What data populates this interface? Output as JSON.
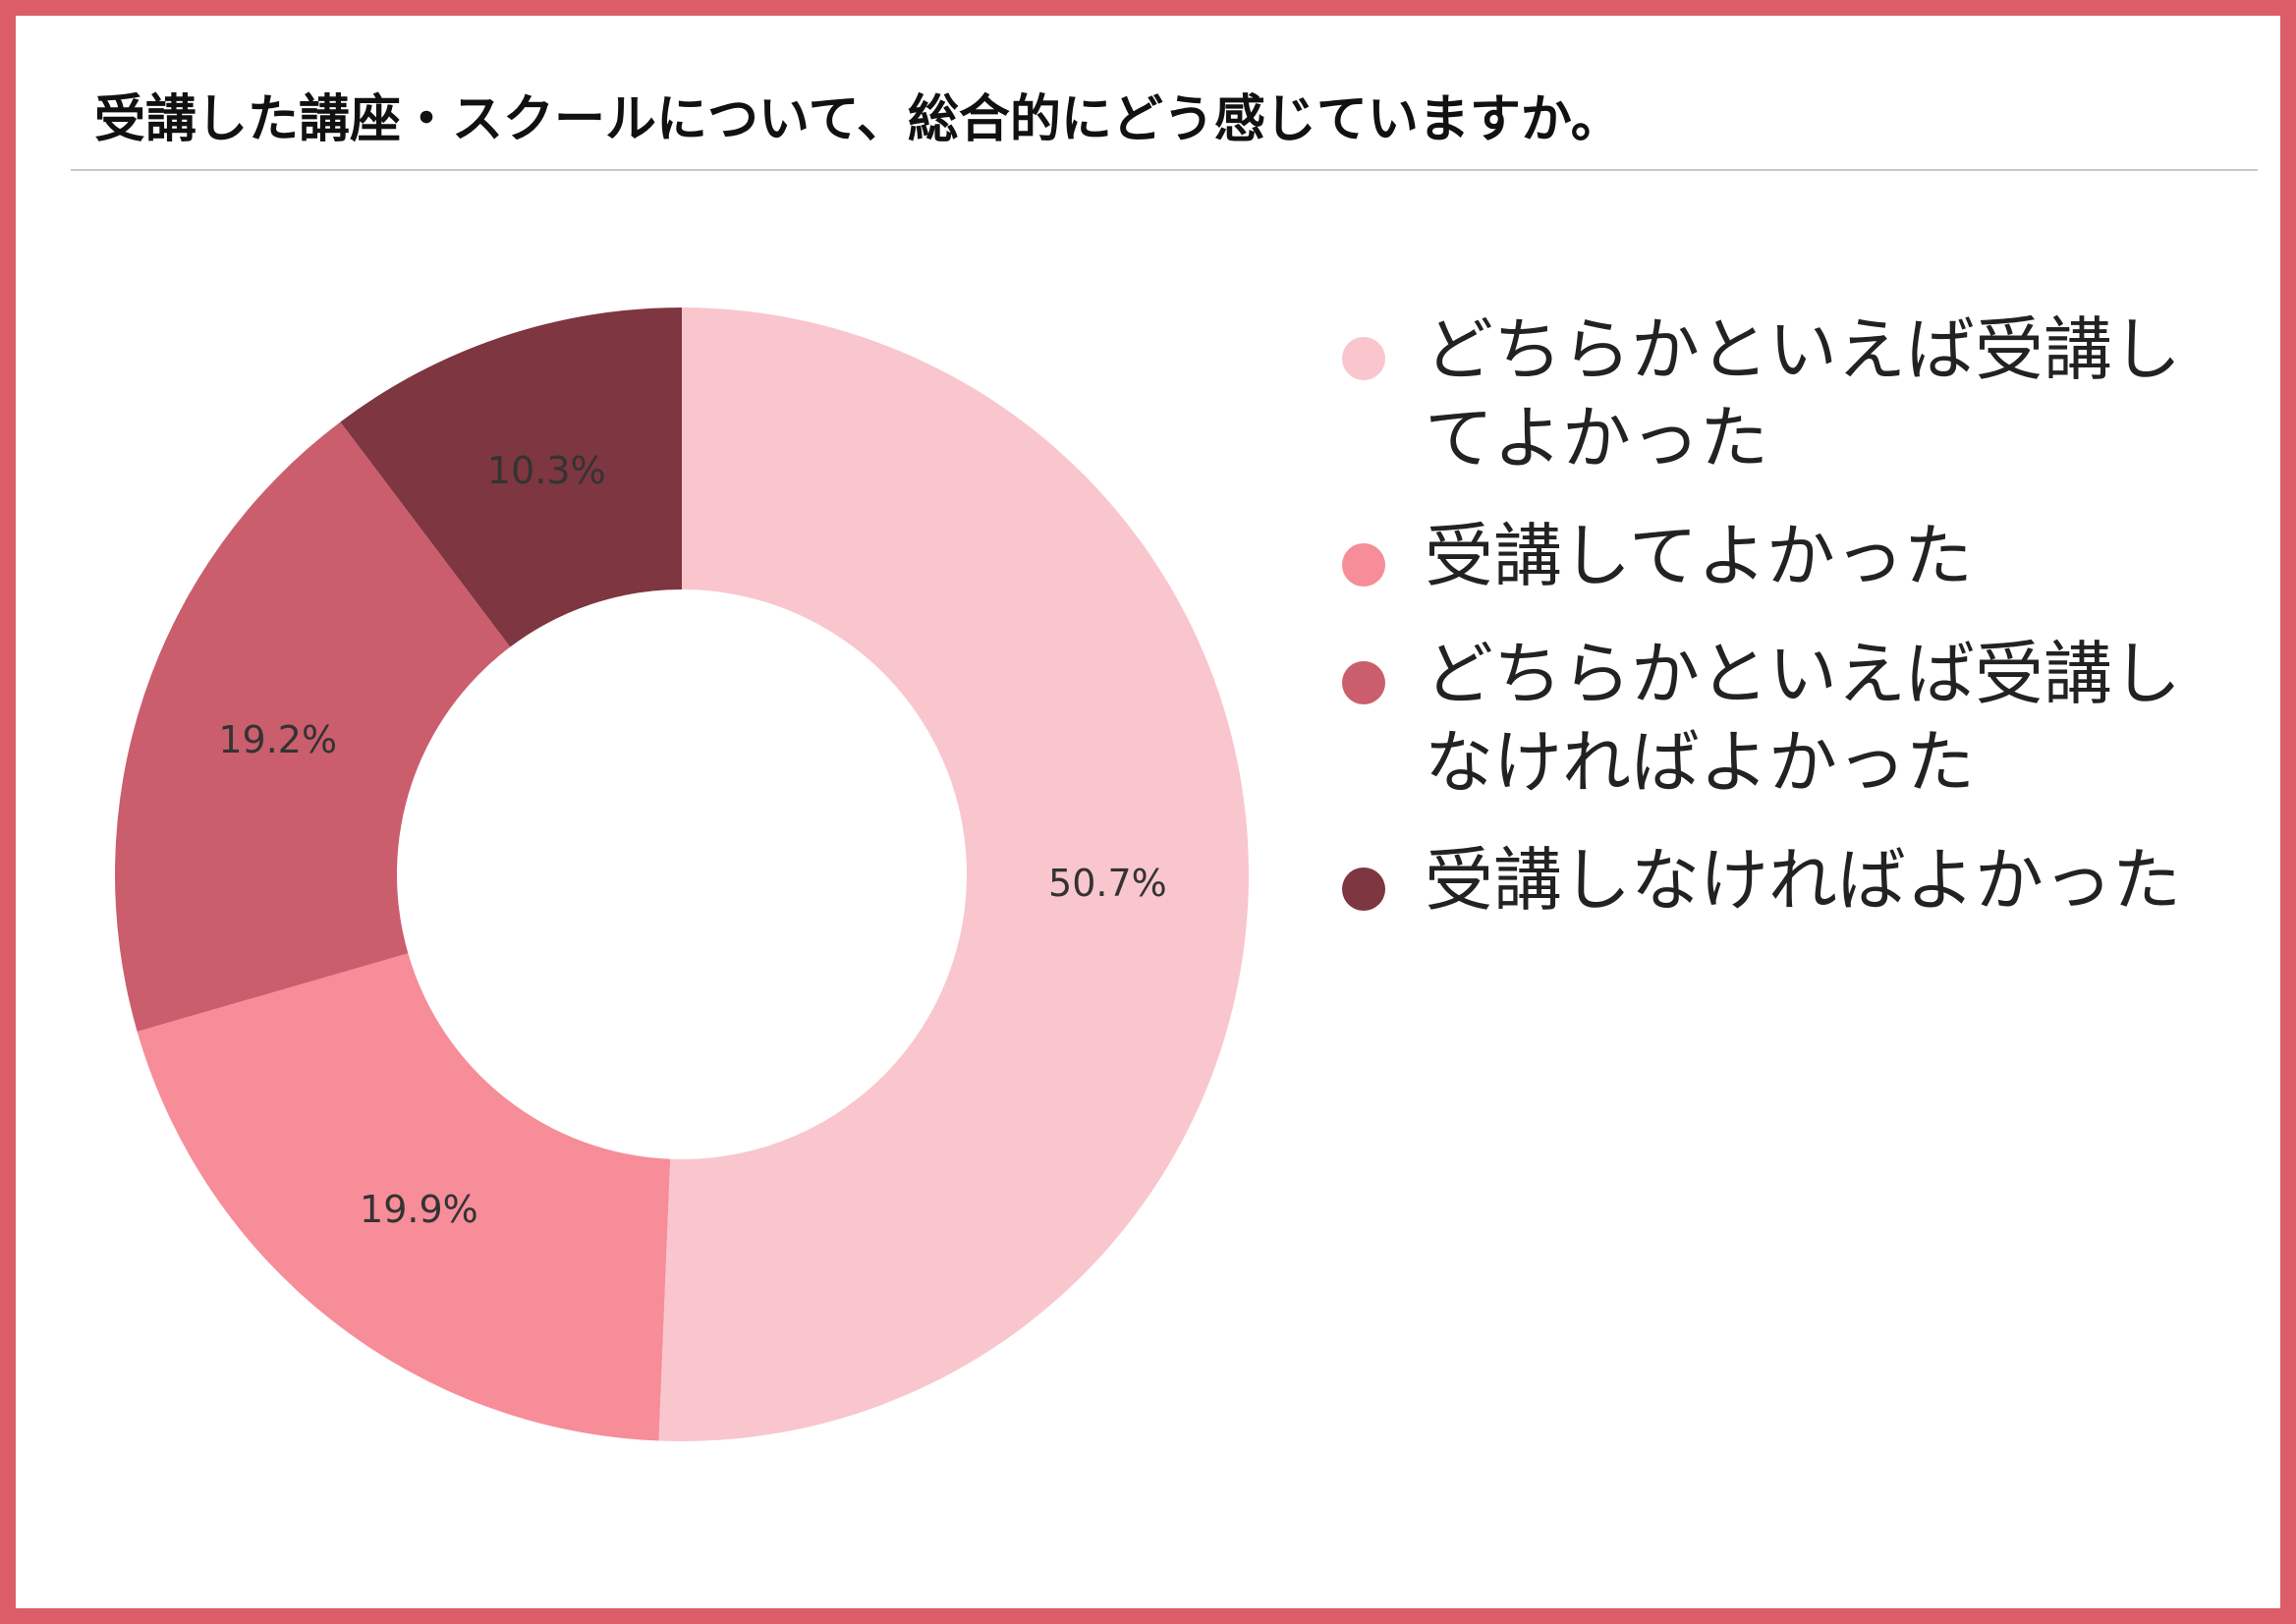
{
  "title": "受講した講座・スクールについて、総合的にどう感じていますか。",
  "colors": {
    "frame": "#dc5d67",
    "title_rule": "#c8c8c8"
  },
  "chart_data": {
    "type": "pie",
    "donut": true,
    "start_angle_deg": 0,
    "direction": "clockwise",
    "legend_position": "right",
    "title": "受講した講座・スクールについて、総合的にどう感じていますか。",
    "unit": "%",
    "series": [
      {
        "values": [
          50.7,
          19.9,
          19.2,
          10.3
        ]
      }
    ],
    "categories": [
      "どちらかといえば受講してよかった",
      "受講してよかった",
      "どちらかといえば受講しなければよかった",
      "受講しなければよかった"
    ],
    "slices": [
      {
        "label": "どちらかといえば受講してよかった",
        "value": 50.7,
        "display": "50.7%",
        "color": "#f9c6cd"
      },
      {
        "label": "受講してよかった",
        "value": 19.9,
        "display": "19.9%",
        "color": "#f68d99"
      },
      {
        "label": "どちらかといえば受講しなければよかった",
        "value": 19.2,
        "display": "19.2%",
        "color": "#cb5e6d"
      },
      {
        "label": "受講しなければよかった",
        "value": 10.3,
        "display": "10.3%",
        "color": "#7e3640"
      }
    ]
  }
}
